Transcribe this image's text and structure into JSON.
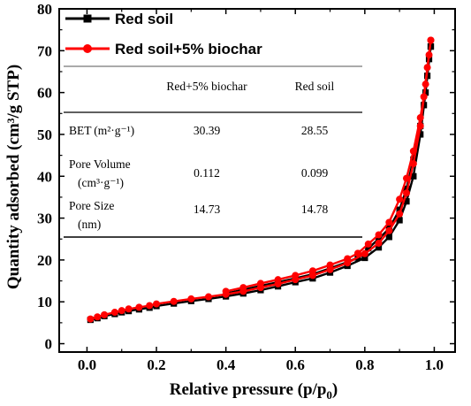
{
  "chart_data": {
    "type": "line",
    "xlabel": "Relative pressure (p/p",
    "xlabel_sub": "0",
    "xlabel_end": ")",
    "ylabel": "Quantity adsorbed (cm³/g STP)",
    "xlim": [
      -0.08,
      1.06
    ],
    "ylim": [
      -2,
      80
    ],
    "xticks": [
      "0.0",
      "0.2",
      "0.4",
      "0.6",
      "0.8",
      "1.0"
    ],
    "yticks": [
      "0",
      "10",
      "20",
      "30",
      "40",
      "50",
      "60",
      "70",
      "80"
    ],
    "legend_position": "top-left",
    "series": [
      {
        "name": "Red soil",
        "color": "#000000",
        "marker": "square",
        "adsorption": [
          [
            0.01,
            5.7
          ],
          [
            0.03,
            6.1
          ],
          [
            0.05,
            6.6
          ],
          [
            0.08,
            7.1
          ],
          [
            0.1,
            7.5
          ],
          [
            0.12,
            7.8
          ],
          [
            0.15,
            8.2
          ],
          [
            0.18,
            8.6
          ],
          [
            0.2,
            9.0
          ],
          [
            0.25,
            9.6
          ],
          [
            0.3,
            10.2
          ],
          [
            0.35,
            10.7
          ],
          [
            0.4,
            11.3
          ],
          [
            0.45,
            12.0
          ],
          [
            0.5,
            12.8
          ],
          [
            0.55,
            13.7
          ],
          [
            0.6,
            14.7
          ],
          [
            0.65,
            15.6
          ],
          [
            0.7,
            17.0
          ],
          [
            0.75,
            18.6
          ],
          [
            0.8,
            20.5
          ],
          [
            0.84,
            23.0
          ],
          [
            0.87,
            25.5
          ],
          [
            0.9,
            29.5
          ],
          [
            0.92,
            34.0
          ],
          [
            0.94,
            40.0
          ],
          [
            0.96,
            50.0
          ],
          [
            0.975,
            60.0
          ],
          [
            0.985,
            68.0
          ],
          [
            0.99,
            71.0
          ]
        ],
        "desorption": [
          [
            0.99,
            71.0
          ],
          [
            0.98,
            64.0
          ],
          [
            0.97,
            57.0
          ],
          [
            0.96,
            52.0
          ],
          [
            0.94,
            44.0
          ],
          [
            0.92,
            37.0
          ],
          [
            0.9,
            32.0
          ],
          [
            0.87,
            27.5
          ],
          [
            0.84,
            25.0
          ],
          [
            0.81,
            22.8
          ],
          [
            0.78,
            20.6
          ],
          [
            0.75,
            19.5
          ],
          [
            0.7,
            18.0
          ],
          [
            0.65,
            16.6
          ],
          [
            0.6,
            15.6
          ],
          [
            0.55,
            14.7
          ],
          [
            0.5,
            13.8
          ],
          [
            0.45,
            12.9
          ],
          [
            0.4,
            12.0
          ]
        ]
      },
      {
        "name": "Red soil+5% biochar",
        "color": "#ff0000",
        "marker": "circle",
        "adsorption": [
          [
            0.01,
            5.9
          ],
          [
            0.03,
            6.4
          ],
          [
            0.05,
            6.9
          ],
          [
            0.08,
            7.5
          ],
          [
            0.1,
            7.9
          ],
          [
            0.12,
            8.3
          ],
          [
            0.15,
            8.7
          ],
          [
            0.18,
            9.1
          ],
          [
            0.2,
            9.5
          ],
          [
            0.25,
            10.1
          ],
          [
            0.3,
            10.7
          ],
          [
            0.35,
            11.2
          ],
          [
            0.4,
            11.8
          ],
          [
            0.45,
            12.5
          ],
          [
            0.5,
            13.4
          ],
          [
            0.55,
            14.3
          ],
          [
            0.6,
            15.3
          ],
          [
            0.65,
            16.3
          ],
          [
            0.7,
            17.7
          ],
          [
            0.75,
            19.3
          ],
          [
            0.8,
            21.5
          ],
          [
            0.84,
            24.0
          ],
          [
            0.87,
            27.0
          ],
          [
            0.9,
            31.0
          ],
          [
            0.92,
            36.0
          ],
          [
            0.94,
            43.0
          ],
          [
            0.96,
            52.0
          ],
          [
            0.975,
            62.0
          ],
          [
            0.985,
            69.0
          ],
          [
            0.99,
            72.5
          ]
        ],
        "desorption": [
          [
            0.99,
            72.5
          ],
          [
            0.98,
            66.0
          ],
          [
            0.97,
            59.0
          ],
          [
            0.96,
            54.0
          ],
          [
            0.94,
            46.0
          ],
          [
            0.92,
            39.5
          ],
          [
            0.9,
            34.5
          ],
          [
            0.87,
            29.0
          ],
          [
            0.84,
            26.0
          ],
          [
            0.81,
            23.8
          ],
          [
            0.78,
            21.6
          ],
          [
            0.75,
            20.3
          ],
          [
            0.7,
            18.8
          ],
          [
            0.65,
            17.4
          ],
          [
            0.6,
            16.3
          ],
          [
            0.55,
            15.3
          ],
          [
            0.5,
            14.4
          ],
          [
            0.45,
            13.4
          ],
          [
            0.4,
            12.5
          ]
        ]
      }
    ],
    "table": {
      "headers": [
        "",
        "Red+5% biochar",
        "Red soil"
      ],
      "rows": [
        {
          "label_lines": [
            "BET (m²·g⁻¹)"
          ],
          "values": [
            "30.39",
            "28.55"
          ]
        },
        {
          "label_lines": [
            "Pore Volume",
            "(cm³·g⁻¹)"
          ],
          "values": [
            "0.112",
            "0.099"
          ]
        },
        {
          "label_lines": [
            "Pore Size",
            "(nm)"
          ],
          "values": [
            "14.73",
            "14.78"
          ]
        }
      ]
    }
  }
}
